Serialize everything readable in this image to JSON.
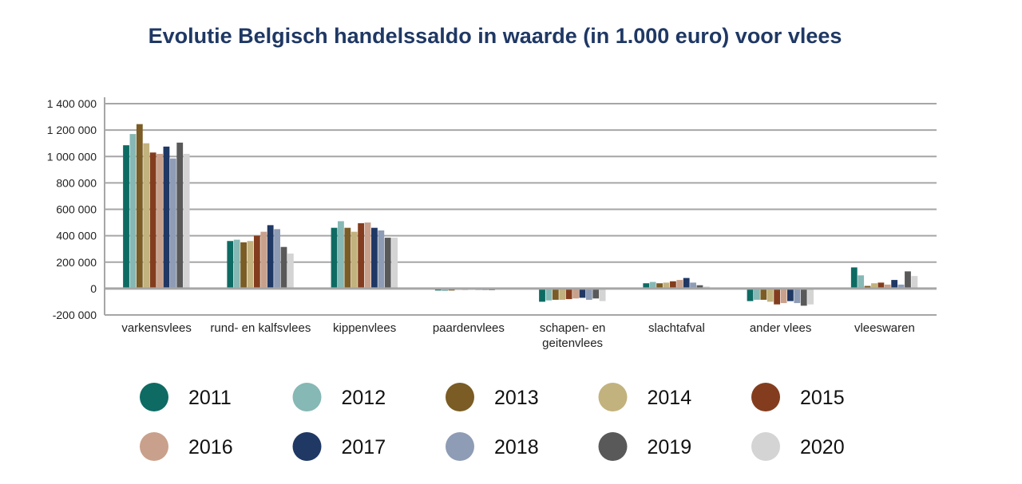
{
  "chart_data": {
    "type": "bar",
    "title": "Evolutie Belgisch handelssaldo in waarde (in 1.000 euro) voor vlees",
    "xlabel": "",
    "ylabel": "",
    "ylim": [
      -200000,
      1400000
    ],
    "yticks": [
      -200000,
      0,
      200000,
      400000,
      600000,
      800000,
      1000000,
      1200000,
      1400000
    ],
    "ytick_labels": [
      "-200 000",
      "0",
      "200 000",
      "400 000",
      "600 000",
      "800 000",
      "1 000 000",
      "1 200 000",
      "1 400 000"
    ],
    "grid": true,
    "legend_position": "bottom",
    "categories": [
      "varkensvlees",
      "rund- en kalfsvlees",
      "kippenvlees",
      "paardenvlees",
      "schapen- en geitenvlees",
      "slachtafval",
      "ander vlees",
      "vleeswaren"
    ],
    "category_lines": [
      [
        "varkensvlees"
      ],
      [
        "rund- en kalfsvlees"
      ],
      [
        "kippenvlees"
      ],
      [
        "paardenvlees"
      ],
      [
        "schapen- en",
        "geitenvlees"
      ],
      [
        "slachtafval"
      ],
      [
        "ander vlees"
      ],
      [
        "vleeswaren"
      ]
    ],
    "series": [
      {
        "name": "2011",
        "color": "#0d6b63",
        "values": [
          1085000,
          360000,
          460000,
          -15000,
          -100000,
          40000,
          -95000,
          160000
        ]
      },
      {
        "name": "2012",
        "color": "#86b8b5",
        "values": [
          1170000,
          370000,
          510000,
          -18000,
          -90000,
          50000,
          -85000,
          100000
        ]
      },
      {
        "name": "2013",
        "color": "#7a5c24",
        "values": [
          1245000,
          350000,
          460000,
          -15000,
          -85000,
          40000,
          -85000,
          20000
        ]
      },
      {
        "name": "2014",
        "color": "#c2b27e",
        "values": [
          1100000,
          360000,
          430000,
          -10000,
          -85000,
          45000,
          -100000,
          40000
        ]
      },
      {
        "name": "2015",
        "color": "#833d1e",
        "values": [
          1030000,
          400000,
          495000,
          -10000,
          -80000,
          55000,
          -120000,
          45000
        ]
      },
      {
        "name": "2016",
        "color": "#c9a08b",
        "values": [
          1020000,
          430000,
          500000,
          -8000,
          -75000,
          65000,
          -110000,
          30000
        ]
      },
      {
        "name": "2017",
        "color": "#1f3864",
        "values": [
          1075000,
          480000,
          460000,
          -10000,
          -70000,
          80000,
          -95000,
          65000
        ]
      },
      {
        "name": "2018",
        "color": "#8e9cb5",
        "values": [
          985000,
          450000,
          440000,
          -12000,
          -85000,
          45000,
          -110000,
          30000
        ]
      },
      {
        "name": "2019",
        "color": "#595959",
        "values": [
          1105000,
          315000,
          385000,
          -12000,
          -75000,
          25000,
          -130000,
          130000
        ]
      },
      {
        "name": "2020",
        "color": "#d4d4d4",
        "values": [
          1020000,
          265000,
          385000,
          -8000,
          -95000,
          15000,
          -120000,
          95000
        ]
      }
    ]
  }
}
